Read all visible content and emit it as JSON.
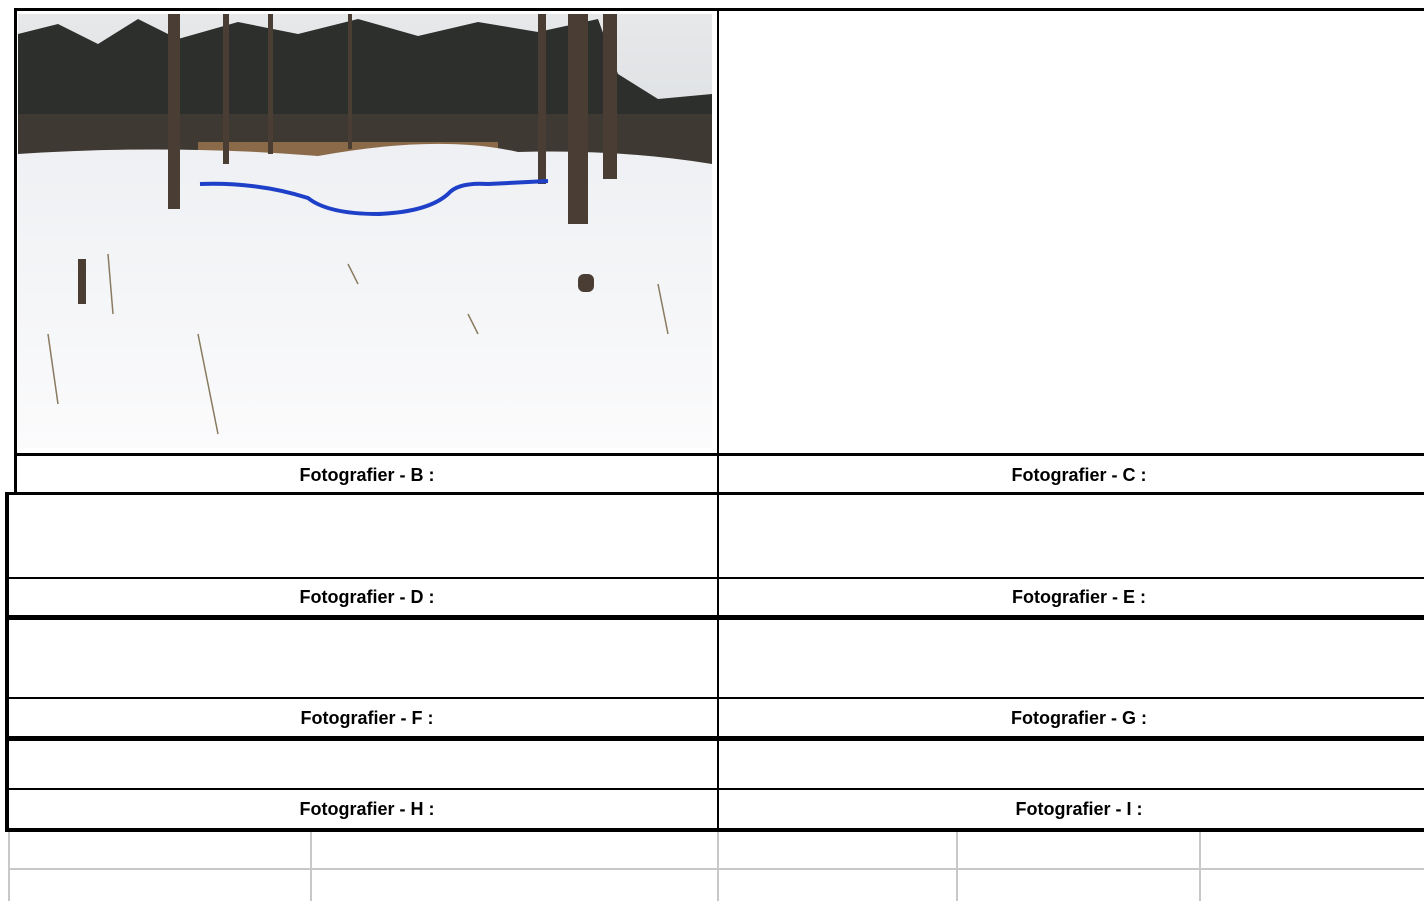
{
  "label_rows": [
    [
      "Fotografier - B :",
      "Fotografier - C :"
    ],
    [
      "Fotografier - D :",
      "Fotografier - E :"
    ],
    [
      "Fotografier - F :",
      "Fotografier - G :"
    ],
    [
      "Fotografier - H :",
      "Fotografier - I :"
    ]
  ]
}
